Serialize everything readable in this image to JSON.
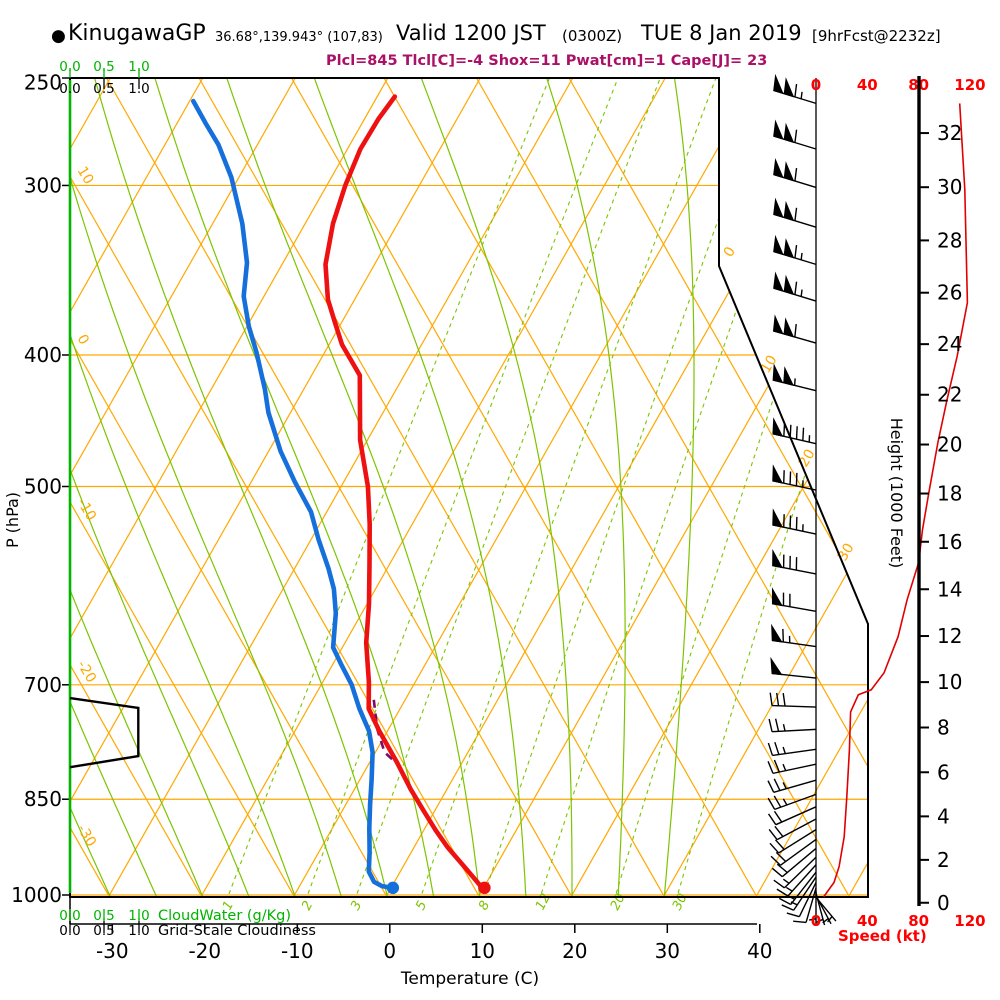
{
  "header": {
    "bullet": "●",
    "station": "KinugawaGP",
    "coords": "36.68°,139.943° (107,83)",
    "valid": "Valid 1200 JST",
    "zulu": "(0300Z)",
    "date": "TUE 8 Jan 2019",
    "fcst": "[9hrFcst@2232z]",
    "params": "Plcl=845 Tlcl[C]=-4 Shox=11 Pwat[cm]=1 Cape[J]= 23"
  },
  "colors": {
    "grid_orange": "#FFA800",
    "grid_green": "#7CC400",
    "axis_green": "#00B400",
    "temp_red": "#EE1111",
    "dewpoint_blue": "#1670DC",
    "speed_red": "#E00000",
    "label_red": "#FF0000",
    "params_magenta": "#AA1166",
    "parcel_purple": "#7A0A6E",
    "black": "#000000"
  },
  "axes": {
    "pressure_label": "P (hPa)",
    "pressure_ticks": [
      250,
      300,
      400,
      500,
      700,
      850,
      1000
    ],
    "temp_label": "Temperature (C)",
    "temp_ticks": [
      -30,
      -20,
      -10,
      0,
      10,
      20,
      30,
      40
    ],
    "height_label": "Height (1000 Feet)",
    "height_ticks": [
      0,
      2,
      4,
      6,
      8,
      10,
      12,
      14,
      16,
      18,
      20,
      22,
      24,
      26,
      28,
      30,
      32
    ],
    "speed_label": "Speed (kt)",
    "speed_ticks": [
      0,
      40,
      80,
      120
    ],
    "cloudwater_label": "CloudWater (g/Kg)",
    "cloudwater_ticks": [
      "0.0",
      "0.5",
      "1.0"
    ],
    "cloudiness_label": "Grid-Scale Cloudiness",
    "cloudiness_ticks": [
      "0.0",
      "0.5",
      "1.0"
    ]
  },
  "chart_data": {
    "type": "line",
    "subtype": "skew-t-log-p sounding",
    "title": "KinugawaGP Valid 1200 JST (0300Z) TUE 8 Jan 2019 [9hrFcst@2232z]",
    "pressure_range_hPa": [
      250,
      1003
    ],
    "temp_range_C": [
      -35,
      40
    ],
    "isotherm_step_C": 10,
    "dry_adiabat_step_C": 10,
    "dry_adiabat_labels_C": [
      10,
      0,
      -10,
      -20,
      -30
    ],
    "isotherm_labels_right_C": [
      0,
      10,
      20,
      30
    ],
    "mixing_ratio_lines_gkg": [
      1,
      2,
      3,
      5,
      8,
      12,
      20,
      30
    ],
    "moist_adiabats_C": [
      -30,
      -25,
      -20,
      -15,
      -10,
      -5,
      0,
      5,
      10,
      15,
      20,
      25,
      30
    ],
    "surface": {
      "temp_C": 10.1,
      "dewpoint_C": 0.2,
      "pressure_hPa": 988
    },
    "temperature_profile": {
      "pressure_hPa": [
        258,
        268,
        282,
        300,
        320,
        343,
        364,
        378,
        393,
        414,
        462,
        500,
        533,
        570,
        610,
        652,
        697,
        729,
        757,
        799,
        836,
        868,
        896,
        923,
        957,
        983,
        988
      ],
      "temp_C": [
        -48.1,
        -48.5,
        -48.6,
        -48.0,
        -47.0,
        -45.3,
        -42.9,
        -40.8,
        -38.6,
        -34.8,
        -30.8,
        -27.1,
        -24.6,
        -22.2,
        -19.8,
        -17.7,
        -15.0,
        -13.4,
        -10.9,
        -7.0,
        -3.9,
        -1.1,
        1.3,
        3.7,
        7.0,
        9.4,
        10.1
      ]
    },
    "dewpoint_profile": {
      "pressure_hPa": [
        260,
        270,
        280,
        296,
        320,
        342,
        362,
        381,
        398,
        424,
        441,
        471,
        496,
        522,
        547,
        575,
        595,
        620,
        657,
        675,
        700,
        729,
        757,
        785,
        823,
        857,
        893,
        930,
        961,
        978,
        985,
        988
      ],
      "temp_C": [
        -69.6,
        -66.9,
        -64.2,
        -60.8,
        -56.8,
        -53.9,
        -52.2,
        -49.8,
        -47.4,
        -44.2,
        -42.4,
        -38.7,
        -35.3,
        -31.7,
        -29.2,
        -26.3,
        -24.5,
        -22.8,
        -21.0,
        -19.2,
        -16.7,
        -14.4,
        -12.0,
        -10.3,
        -8.7,
        -7.4,
        -6.0,
        -4.5,
        -3.4,
        -2.2,
        -1.1,
        0.2
      ]
    },
    "parcel_path": {
      "pressure_hPa": [
        718,
        755,
        785,
        800
      ],
      "temp_C": [
        -13.4,
        -11.2,
        -9.0,
        -7.0
      ]
    },
    "cloudiness_profile": {
      "pressure_hPa": [
        716,
        728,
        790,
        805
      ],
      "value": [
        0,
        0.99,
        0.99,
        0
      ]
    },
    "wind_speed_profile": {
      "pressure_hPa": [
        261,
        302,
        366,
        401,
        432,
        464,
        505,
        538,
        569,
        606,
        645,
        686,
        706,
        712,
        733,
        782,
        847,
        906,
        953,
        979,
        994,
        1003
      ],
      "speed_kt": [
        112,
        116,
        118,
        110,
        102,
        95,
        88,
        83,
        80,
        71,
        64,
        53,
        43,
        33,
        27,
        26,
        24,
        22,
        18,
        14,
        9,
        6
      ]
    },
    "wind_barbs": [
      {
        "p": 261,
        "kt": 115,
        "dir": 287
      },
      {
        "p": 282,
        "kt": 110,
        "dir": 287
      },
      {
        "p": 301,
        "kt": 110,
        "dir": 287
      },
      {
        "p": 322,
        "kt": 113,
        "dir": 287
      },
      {
        "p": 343,
        "kt": 116,
        "dir": 287
      },
      {
        "p": 365,
        "kt": 118,
        "dir": 287
      },
      {
        "p": 392,
        "kt": 113,
        "dir": 286
      },
      {
        "p": 425,
        "kt": 105,
        "dir": 284
      },
      {
        "p": 465,
        "kt": 95,
        "dir": 283
      },
      {
        "p": 503,
        "kt": 88,
        "dir": 282
      },
      {
        "p": 542,
        "kt": 85,
        "dir": 282
      },
      {
        "p": 580,
        "kt": 80,
        "dir": 281
      },
      {
        "p": 618,
        "kt": 70,
        "dir": 280
      },
      {
        "p": 656,
        "kt": 65,
        "dir": 278
      },
      {
        "p": 692,
        "kt": 50,
        "dir": 276
      },
      {
        "p": 727,
        "kt": 30,
        "dir": 272
      },
      {
        "p": 755,
        "kt": 27,
        "dir": 267
      },
      {
        "p": 781,
        "kt": 26,
        "dir": 262
      },
      {
        "p": 801,
        "kt": 25,
        "dir": 258
      },
      {
        "p": 823,
        "kt": 25,
        "dir": 254
      },
      {
        "p": 843,
        "kt": 24,
        "dir": 250
      },
      {
        "p": 861,
        "kt": 23,
        "dir": 246
      },
      {
        "p": 879,
        "kt": 22,
        "dir": 242
      },
      {
        "p": 895,
        "kt": 21,
        "dir": 238
      },
      {
        "p": 910,
        "kt": 21,
        "dir": 234
      },
      {
        "p": 924,
        "kt": 20,
        "dir": 230
      },
      {
        "p": 938,
        "kt": 18,
        "dir": 226
      },
      {
        "p": 950,
        "kt": 16,
        "dir": 222
      },
      {
        "p": 962,
        "kt": 15,
        "dir": 218
      },
      {
        "p": 970,
        "kt": 14,
        "dir": 214
      },
      {
        "p": 979,
        "kt": 12,
        "dir": 206
      },
      {
        "p": 988,
        "kt": 10,
        "dir": 196
      },
      {
        "p": 993,
        "kt": 8,
        "dir": 180
      },
      {
        "p": 997,
        "kt": 7,
        "dir": 165
      },
      {
        "p": 1001,
        "kt": 6,
        "dir": 152
      },
      {
        "p": 1004,
        "kt": 5,
        "dir": 140
      }
    ]
  }
}
